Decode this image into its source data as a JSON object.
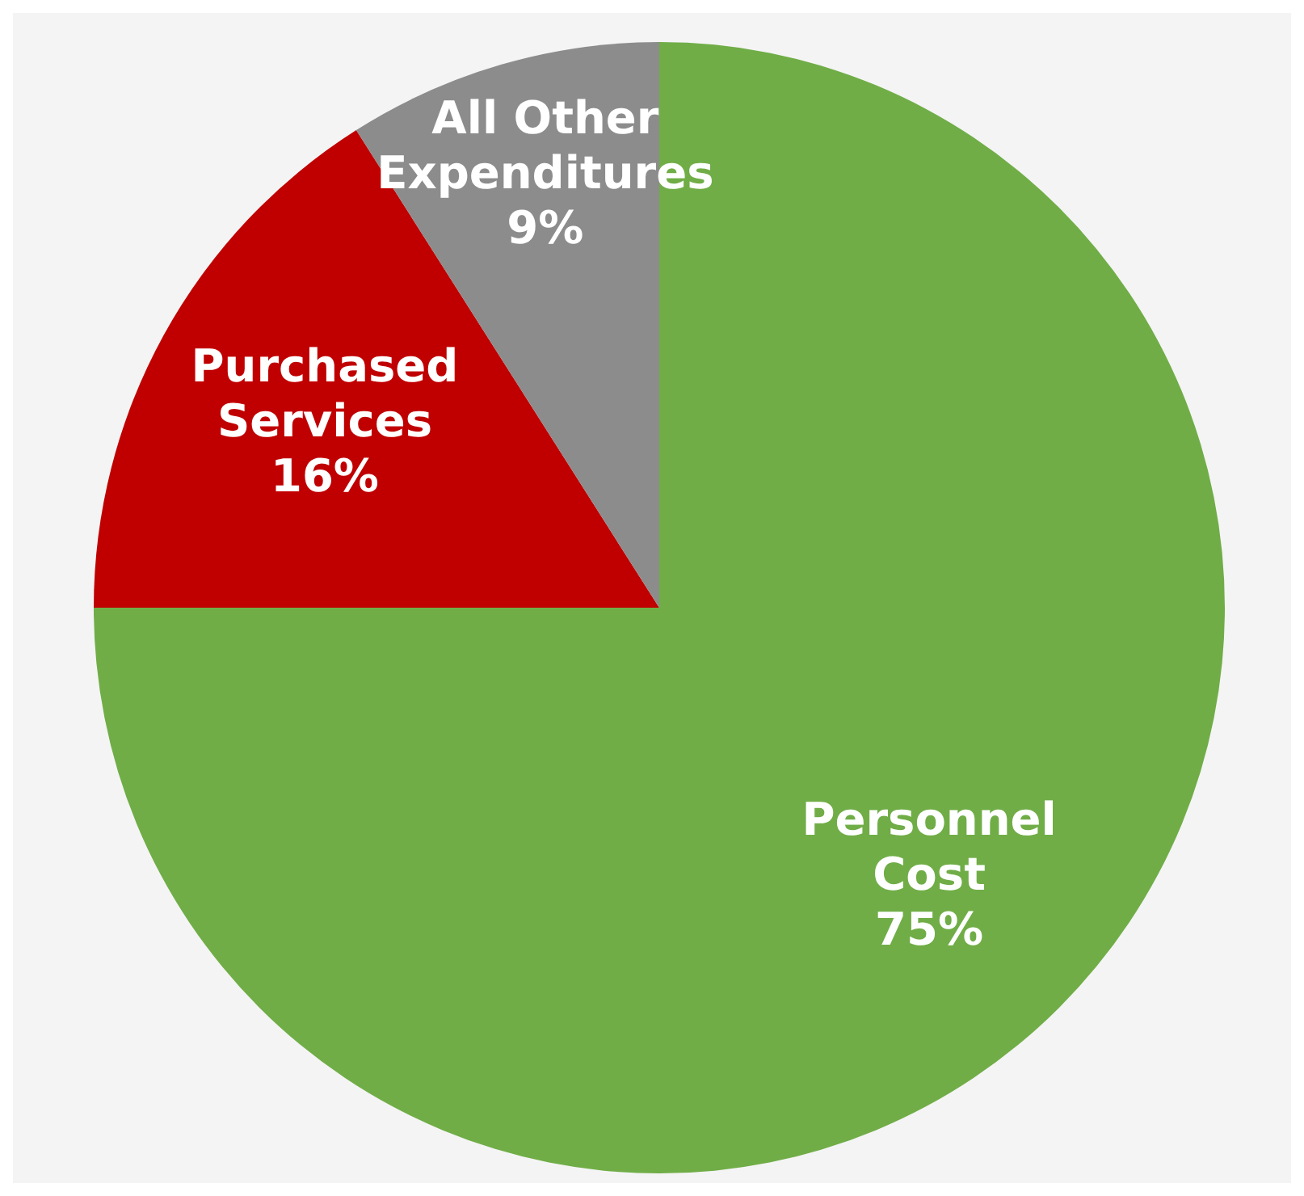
{
  "chart_data": {
    "type": "pie",
    "categories": [
      "Personnel Cost",
      "Purchased Services",
      "All Other Expenditures"
    ],
    "values": [
      75,
      16,
      9
    ],
    "colors": [
      "#70ad47",
      "#c00000",
      "#8c8c8c"
    ],
    "value_labels": [
      "75%",
      "16%",
      "9%"
    ],
    "data_labels": true
  }
}
